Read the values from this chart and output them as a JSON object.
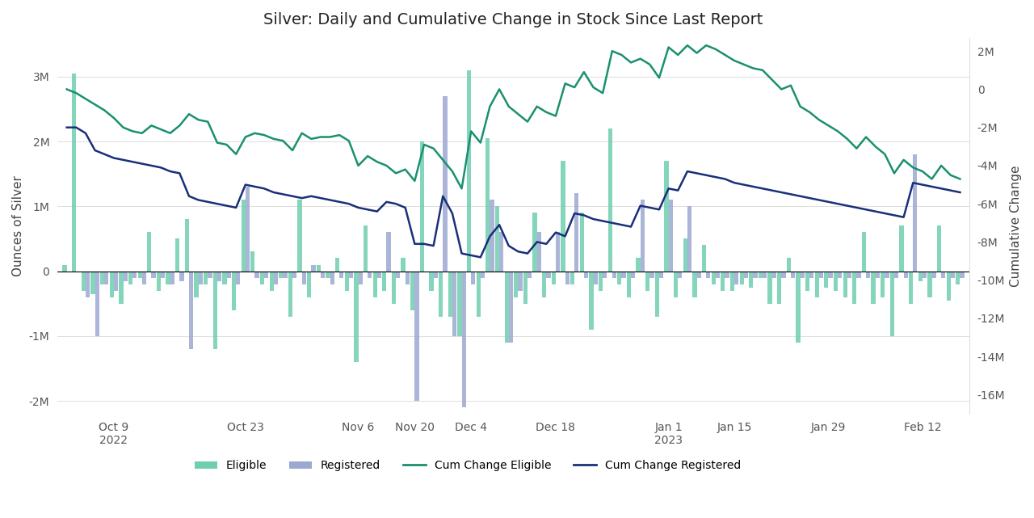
{
  "title": "Silver: Daily and Cumulative Change in Stock Since Last Report",
  "ylabel_left": "Ounces of Silver",
  "ylabel_right": "Cumulative Change",
  "eligible_color": "#6eceb0",
  "registered_color": "#9ba8d0",
  "cum_eligible_color": "#1a9070",
  "cum_registered_color": "#1a2f7a",
  "ylim_left": [
    -2200000,
    3600000
  ],
  "ylim_right": [
    -17000000,
    2700000
  ],
  "eligible_bars": [
    100000,
    3050000,
    -300000,
    -350000,
    -200000,
    -400000,
    -500000,
    -200000,
    -100000,
    600000,
    -300000,
    -200000,
    500000,
    800000,
    -400000,
    -200000,
    -1200000,
    -200000,
    -600000,
    1100000,
    300000,
    -200000,
    -300000,
    -100000,
    -700000,
    1100000,
    -400000,
    100000,
    -100000,
    200000,
    -300000,
    -1400000,
    700000,
    -400000,
    -300000,
    -500000,
    200000,
    -600000,
    2000000,
    -300000,
    -700000,
    -700000,
    -1000000,
    3100000,
    -700000,
    2050000,
    1000000,
    -1100000,
    -400000,
    -500000,
    900000,
    -400000,
    -200000,
    1700000,
    -200000,
    900000,
    -900000,
    -300000,
    2200000,
    -200000,
    -400000,
    200000,
    -300000,
    -700000,
    1700000,
    -400000,
    500000,
    -400000,
    400000,
    -200000,
    -300000,
    -300000,
    -200000,
    -250000,
    -100000,
    -500000,
    -500000,
    200000,
    -1100000,
    -300000,
    -400000,
    -250000,
    -300000,
    -400000,
    -500000,
    600000,
    -500000,
    -400000,
    -1000000,
    700000,
    -500000,
    -150000,
    -400000,
    700000,
    -450000,
    -200000
  ],
  "registered_bars": [
    0,
    0,
    -400000,
    -1000000,
    -200000,
    -300000,
    -150000,
    -100000,
    -200000,
    -100000,
    -100000,
    -200000,
    -150000,
    -1200000,
    -200000,
    -100000,
    -150000,
    -100000,
    -200000,
    1300000,
    -100000,
    -100000,
    -200000,
    -100000,
    -100000,
    -200000,
    100000,
    -100000,
    -200000,
    -100000,
    -100000,
    -200000,
    -100000,
    -100000,
    600000,
    -100000,
    -200000,
    -2000000,
    0,
    -100000,
    2700000,
    -1000000,
    -2100000,
    -200000,
    -100000,
    1100000,
    600000,
    -1100000,
    -300000,
    -100000,
    600000,
    -100000,
    600000,
    -200000,
    1200000,
    -100000,
    -200000,
    -100000,
    -100000,
    -100000,
    -100000,
    1100000,
    -100000,
    -100000,
    1100000,
    -100000,
    1000000,
    -100000,
    -100000,
    -100000,
    -100000,
    -200000,
    -100000,
    -100000,
    -100000,
    -100000,
    -100000,
    -100000,
    -100000,
    -100000,
    -100000,
    -100000,
    -100000,
    -100000,
    -100000,
    -100000,
    -100000,
    -100000,
    -100000,
    -100000,
    1800000,
    -100000,
    -100000,
    -100000,
    -100000,
    -100000
  ],
  "cum_eligible": [
    0,
    -200000,
    -500000,
    -800000,
    -1100000,
    -1500000,
    -2000000,
    -2200000,
    -2300000,
    -1900000,
    -2100000,
    -2300000,
    -1900000,
    -1300000,
    -1600000,
    -1700000,
    -2800000,
    -2900000,
    -3400000,
    -2500000,
    -2300000,
    -2400000,
    -2600000,
    -2700000,
    -3200000,
    -2300000,
    -2600000,
    -2500000,
    -2500000,
    -2400000,
    -2700000,
    -4000000,
    -3500000,
    -3800000,
    -4000000,
    -4400000,
    -4200000,
    -4800000,
    -2900000,
    -3100000,
    -3700000,
    -4300000,
    -5200000,
    -2200000,
    -2800000,
    -900000,
    0,
    -900000,
    -1300000,
    -1700000,
    -900000,
    -1200000,
    -1400000,
    300000,
    100000,
    900000,
    100000,
    -200000,
    2000000,
    1800000,
    1400000,
    1600000,
    1300000,
    600000,
    2200000,
    1800000,
    2300000,
    1900000,
    2300000,
    2100000,
    1800000,
    1500000,
    1300000,
    1100000,
    1000000,
    500000,
    0,
    200000,
    -900000,
    -1200000,
    -1600000,
    -1900000,
    -2200000,
    -2600000,
    -3100000,
    -2500000,
    -3000000,
    -3400000,
    -4400000,
    -3700000,
    -4100000,
    -4300000,
    -4700000,
    -4000000,
    -4500000,
    -4700000
  ],
  "cum_registered": [
    -2000000,
    -2000000,
    -2300000,
    -3200000,
    -3400000,
    -3600000,
    -3700000,
    -3800000,
    -3900000,
    -4000000,
    -4100000,
    -4300000,
    -4400000,
    -5600000,
    -5800000,
    -5900000,
    -6000000,
    -6100000,
    -6200000,
    -5000000,
    -5100000,
    -5200000,
    -5400000,
    -5500000,
    -5600000,
    -5700000,
    -5600000,
    -5700000,
    -5800000,
    -5900000,
    -6000000,
    -6200000,
    -6300000,
    -6400000,
    -5900000,
    -6000000,
    -6200000,
    -8100000,
    -8100000,
    -8200000,
    -5600000,
    -6500000,
    -8600000,
    -8700000,
    -8800000,
    -7700000,
    -7100000,
    -8200000,
    -8500000,
    -8600000,
    -8000000,
    -8100000,
    -7500000,
    -7700000,
    -6500000,
    -6600000,
    -6800000,
    -6900000,
    -7000000,
    -7100000,
    -7200000,
    -6100000,
    -6200000,
    -6300000,
    -5200000,
    -5300000,
    -4300000,
    -4400000,
    -4500000,
    -4600000,
    -4700000,
    -4900000,
    -5000000,
    -5100000,
    -5200000,
    -5300000,
    -5400000,
    -5500000,
    -5600000,
    -5700000,
    -5800000,
    -5900000,
    -6000000,
    -6100000,
    -6200000,
    -6300000,
    -6400000,
    -6500000,
    -6600000,
    -6700000,
    -4900000,
    -5000000,
    -5100000,
    -5200000,
    -5300000,
    -5400000
  ],
  "xtick_labels": [
    "Oct 9\n2022",
    "Oct 23",
    "Nov 6",
    "Nov 20",
    "Dec 4",
    "Dec 18",
    "Jan 1\n2023",
    "Jan 15",
    "Jan 29",
    "Feb 12"
  ],
  "xtick_positions": [
    5,
    19,
    31,
    37,
    43,
    52,
    64,
    71,
    81,
    91
  ]
}
